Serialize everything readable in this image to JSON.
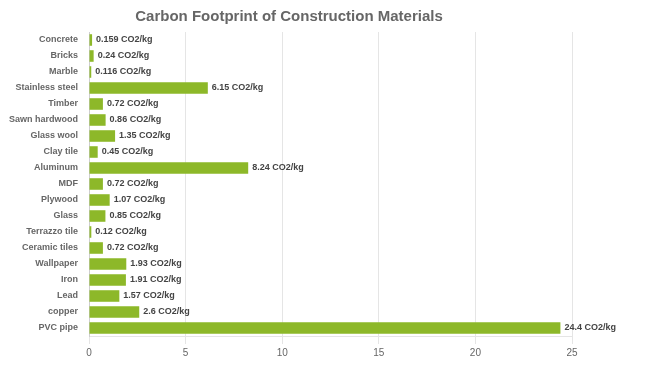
{
  "chart_data": {
    "type": "bar",
    "orientation": "horizontal",
    "title": "Carbon Footprint of Construction Materials",
    "categories": [
      "Concrete",
      "Bricks",
      "Marble",
      "Stainless steel",
      "Timber",
      "Sawn hardwood",
      "Glass wool",
      "Clay tile",
      "Aluminum",
      "MDF",
      "Plywood",
      "Glass",
      "Terrazzo tile",
      "Ceramic tiles",
      "Wallpaper",
      "Iron",
      "Lead",
      "copper",
      "PVC pipe"
    ],
    "values": [
      0.159,
      0.24,
      0.116,
      6.15,
      0.72,
      0.86,
      1.35,
      0.45,
      8.24,
      0.72,
      1.07,
      0.85,
      0.12,
      0.72,
      1.93,
      1.91,
      1.57,
      2.6,
      24.4
    ],
    "value_labels": [
      "0.159 CO2/kg",
      "0.24 CO2/kg",
      "0.116 CO2/kg",
      "6.15 CO2/kg",
      "0.72 CO2/kg",
      "0.86 CO2/kg",
      "1.35 CO2/kg",
      "0.45 CO2/kg",
      "8.24 CO2/kg",
      "0.72 CO2/kg",
      "1.07 CO2/kg",
      "0.85 CO2/kg",
      "0.12 CO2/kg",
      "0.72 CO2/kg",
      "1.93 CO2/kg",
      "1.91 CO2/kg",
      "1.57 CO2/kg",
      "2.6 CO2/kg",
      "24.4 CO2/kg"
    ],
    "data_labels": true,
    "color": "#8db829",
    "xlim": [
      0,
      25
    ],
    "xticks": [
      0,
      5,
      10,
      15,
      20,
      25
    ],
    "grid": true
  }
}
